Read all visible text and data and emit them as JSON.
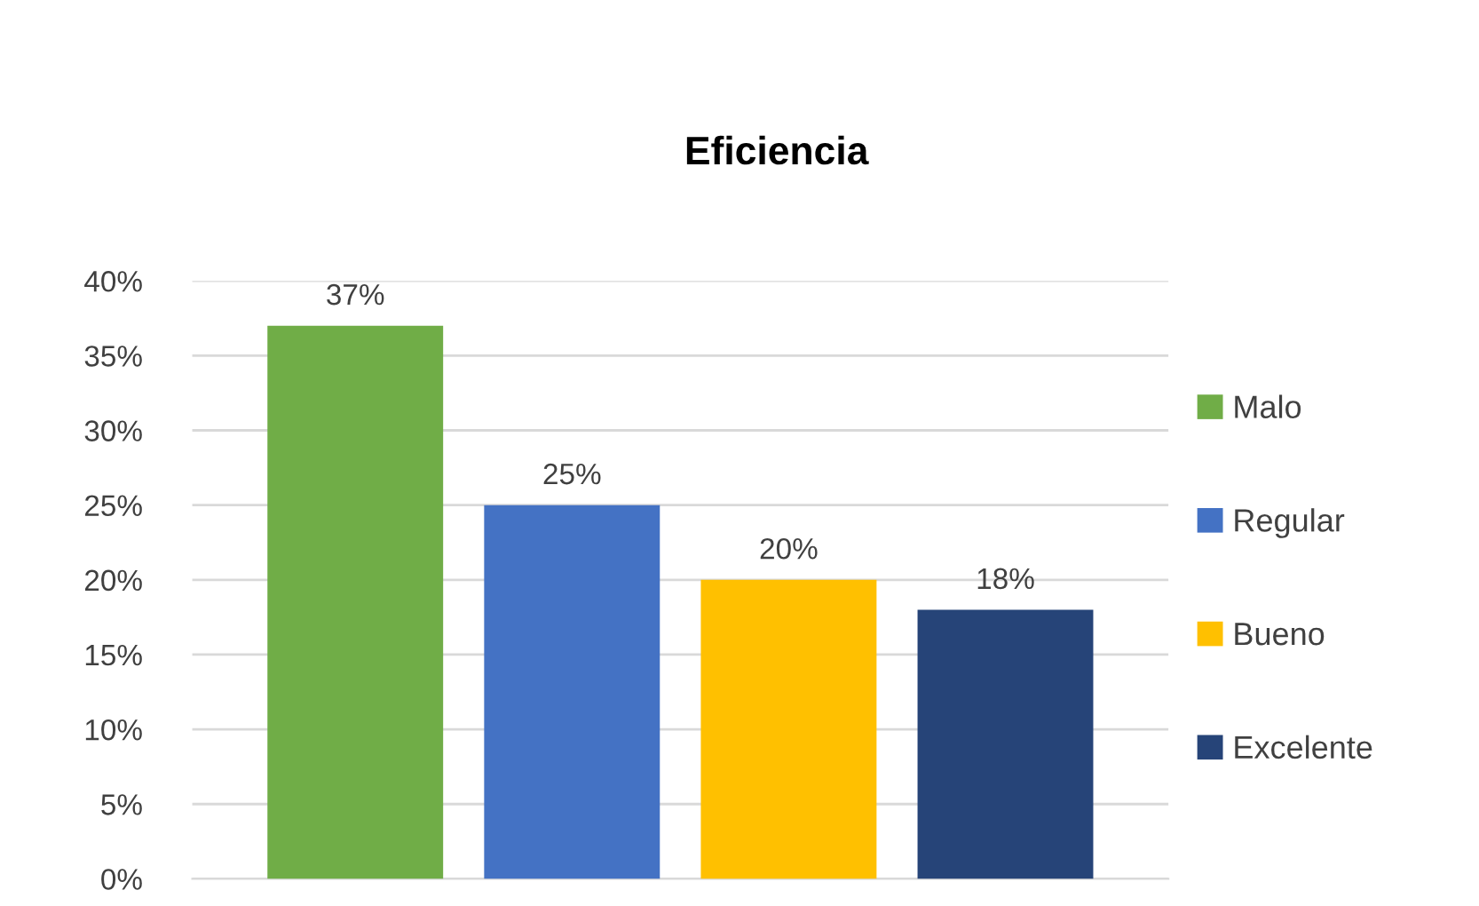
{
  "chart_data": {
    "type": "bar",
    "title": "Eficiencia",
    "categories": [
      null
    ],
    "series": [
      {
        "name": "Malo",
        "color": "#70ad47",
        "values": [
          37
        ],
        "value_labels": [
          "37%"
        ]
      },
      {
        "name": "Regular",
        "color": "#4472c4",
        "values": [
          25
        ],
        "value_labels": [
          "25%"
        ]
      },
      {
        "name": "Bueno",
        "color": "#ffc000",
        "values": [
          20
        ],
        "value_labels": [
          "20%"
        ]
      },
      {
        "name": "Excelente",
        "color": "#264478",
        "values": [
          18
        ],
        "value_labels": [
          "18%"
        ]
      }
    ],
    "ylim": [
      0,
      40
    ],
    "yticks": [
      {
        "value": 0,
        "label": "0%"
      },
      {
        "value": 5,
        "label": "5%"
      },
      {
        "value": 10,
        "label": "10%"
      },
      {
        "value": 15,
        "label": "15%"
      },
      {
        "value": 20,
        "label": "20%"
      },
      {
        "value": 25,
        "label": "25%"
      },
      {
        "value": 30,
        "label": "30%"
      },
      {
        "value": 35,
        "label": "35%"
      },
      {
        "value": 40,
        "label": "40%"
      }
    ],
    "grid": "y",
    "legend": "right"
  }
}
